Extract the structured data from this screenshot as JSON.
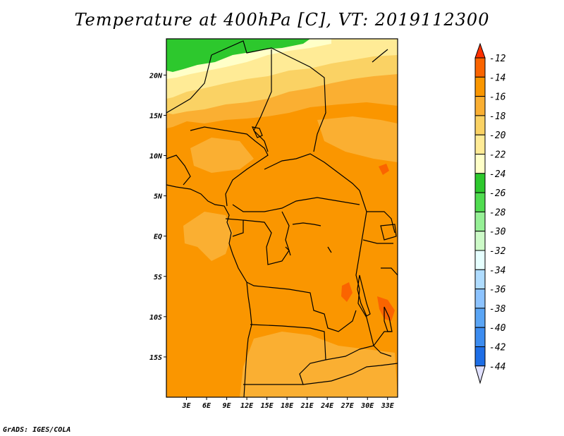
{
  "title": "Temperature at 400hPa [C], VT: 2019112300",
  "credit": "GrADS: IGES/COLA",
  "map": {
    "lon_range": [
      0,
      34.5
    ],
    "lat_range": [
      -20,
      24.5
    ],
    "lat_ticks": [
      "20N",
      "15N",
      "10N",
      "5N",
      "EQ",
      "5S",
      "10S",
      "15S"
    ],
    "lon_ticks": [
      "3E",
      "6E",
      "9E",
      "12E",
      "15E",
      "18E",
      "21E",
      "24E",
      "27E",
      "30E",
      "33E"
    ]
  },
  "colorbar": {
    "labels": [
      "-12",
      "-14",
      "-16",
      "-18",
      "-20",
      "-22",
      "-24",
      "-26",
      "-28",
      "-30",
      "-32",
      "-34",
      "-36",
      "-38",
      "-40",
      "-42",
      "-44"
    ],
    "colors": [
      "#ff3000",
      "#fa6400",
      "#fa9600",
      "#faaf32",
      "#fad264",
      "#ffeb96",
      "#ffffc8",
      "#2dc82d",
      "#50dc50",
      "#96f096",
      "#cdfac8",
      "#e6ffff",
      "#afdcff",
      "#8cc3ff",
      "#5aa5f5",
      "#3c8cf0",
      "#1e6ee6",
      "#0a46c8",
      "#0a1e96",
      "#000064"
    ],
    "top_color": "#ff3000",
    "bottom_color": "#e1e1ff"
  },
  "field_colors": {
    "t_minus_14": "#fa9600",
    "t_minus_16": "#faaf32",
    "t_minus_18": "#fad264",
    "t_minus_20": "#ffeb96",
    "t_minus_22": "#ffffc8",
    "t_minus_24": "#2dc82d",
    "t_minus_12": "#fa6400"
  }
}
